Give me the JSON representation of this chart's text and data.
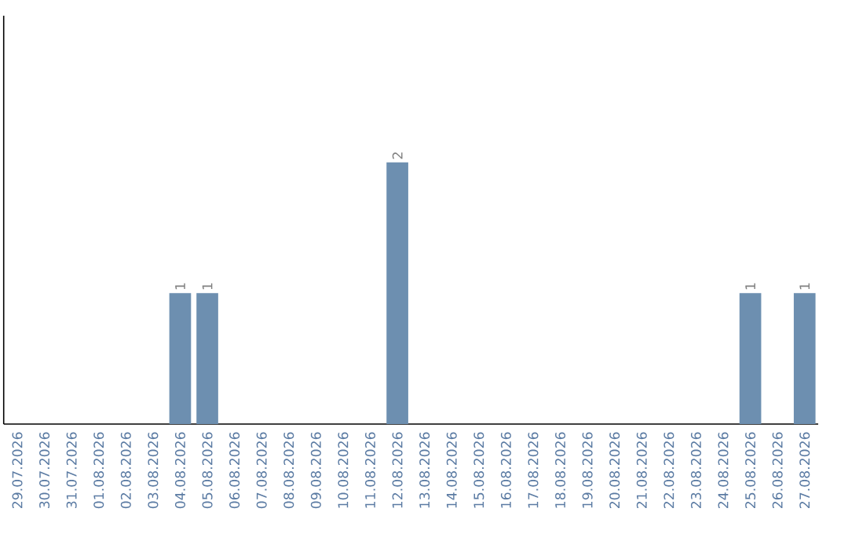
{
  "chart_data": {
    "type": "bar",
    "categories": [
      "29.07.2026",
      "30.07.2026",
      "31.07.2026",
      "01.08.2026",
      "02.08.2026",
      "03.08.2026",
      "04.08.2026",
      "05.08.2026",
      "06.08.2026",
      "07.08.2026",
      "08.08.2026",
      "09.08.2026",
      "10.08.2026",
      "11.08.2026",
      "12.08.2026",
      "13.08.2026",
      "14.08.2026",
      "15.08.2026",
      "16.08.2026",
      "17.08.2026",
      "18.08.2026",
      "19.08.2026",
      "20.08.2026",
      "21.08.2026",
      "22.08.2026",
      "23.08.2026",
      "24.08.2026",
      "25.08.2026",
      "26.08.2026",
      "27.08.2026"
    ],
    "values": [
      0,
      0,
      0,
      0,
      0,
      0,
      1,
      1,
      0,
      0,
      0,
      0,
      0,
      0,
      2,
      0,
      0,
      0,
      0,
      0,
      0,
      0,
      0,
      0,
      0,
      0,
      0,
      1,
      0,
      1
    ],
    "value_labels": [
      null,
      null,
      null,
      null,
      null,
      null,
      "1",
      "1",
      null,
      null,
      null,
      null,
      null,
      null,
      "2",
      null,
      null,
      null,
      null,
      null,
      null,
      null,
      null,
      null,
      null,
      null,
      null,
      "1",
      null,
      "1"
    ],
    "color": "#6d8fb0"
  }
}
